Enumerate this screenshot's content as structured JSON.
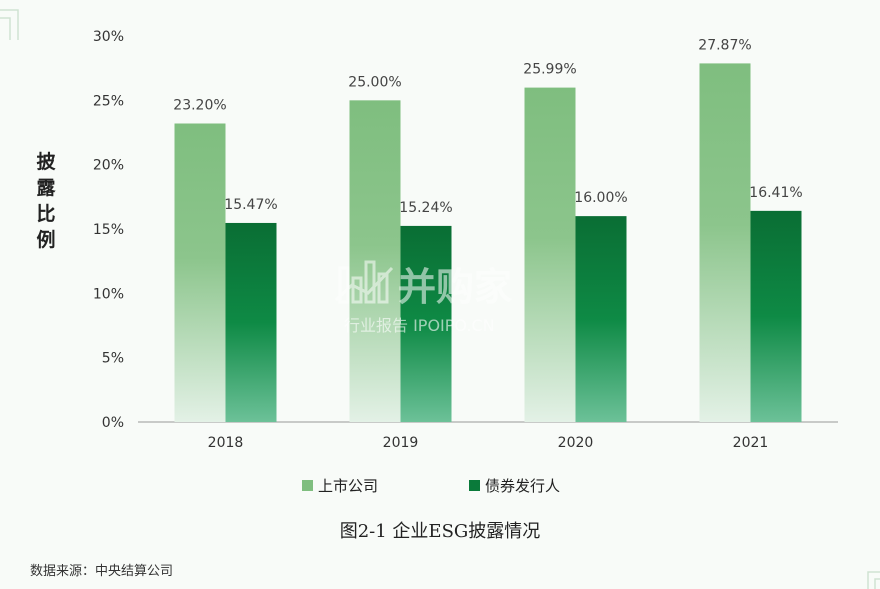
{
  "chart_data": {
    "type": "bar",
    "categories": [
      "2018",
      "2019",
      "2020",
      "2021"
    ],
    "series": [
      {
        "name": "上市公司",
        "values": [
          23.2,
          25.0,
          25.99,
          27.87
        ],
        "labels": [
          "23.20%",
          "25.00%",
          "25.99%",
          "27.87%"
        ]
      },
      {
        "name": "债券发行人",
        "values": [
          15.47,
          15.24,
          16.0,
          16.41
        ],
        "labels": [
          "15.47%",
          "15.24%",
          "16.00%",
          "16.41%"
        ]
      }
    ],
    "yticks": [
      "0%",
      "5%",
      "10%",
      "15%",
      "20%",
      "25%",
      "30%"
    ],
    "ylim": [
      0,
      30
    ],
    "ylabel": "披露比例",
    "legend_position": "bottom",
    "grid": false
  },
  "caption": "图2-1 企业ESG披露情况",
  "source": "数据来源：中央结算公司",
  "watermark": {
    "main": "并购家",
    "sub": "行业报告 IPOIPO.CN"
  },
  "colors": {
    "series1": "#7fbe7f",
    "series2": "#0a7a3a",
    "axis": "#999999"
  }
}
